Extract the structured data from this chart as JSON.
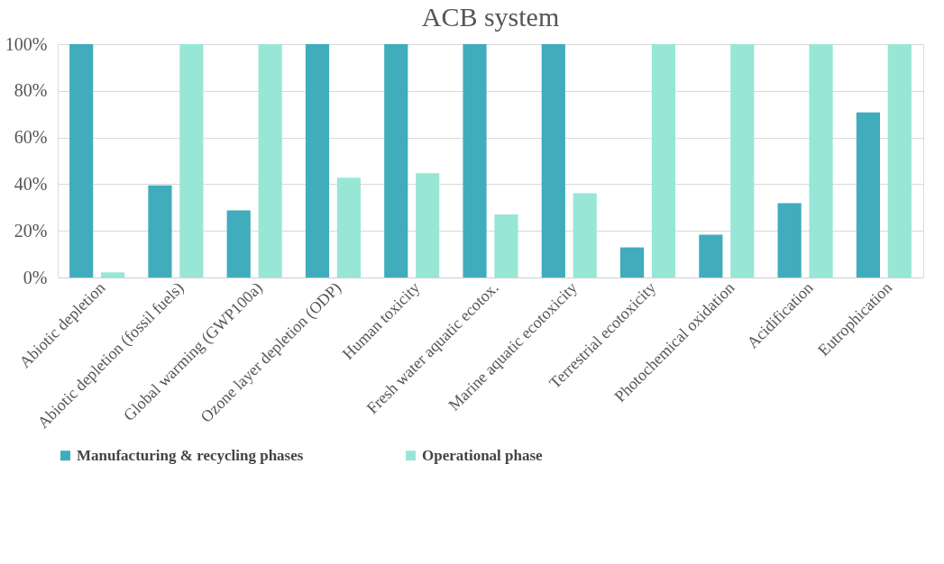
{
  "chart_data": {
    "type": "bar",
    "title": "ACB system",
    "categories": [
      "Abiotic depletion",
      "Abiotic depletion (fossil fuels)",
      "Global warming (GWP100a)",
      "Ozone layer depletion (ODP)",
      "Human toxicity",
      "Fresh water aquatic ecotox.",
      "Marine aquatic ecotoxicity",
      "Terrestrial ecotoxicity",
      "Photochemical oxidation",
      "Acidification",
      "Eutrophication"
    ],
    "series": [
      {
        "name": "Manufacturing & recycling phases",
        "color": "#40acbc",
        "values": [
          100,
          39.5,
          28.8,
          100,
          100,
          100,
          100,
          12.9,
          18.3,
          31.9,
          70.8
        ]
      },
      {
        "name": "Operational phase",
        "color": "#98e6d6",
        "values": [
          2.2,
          100,
          100,
          42.8,
          44.7,
          27.0,
          36.1,
          100,
          100,
          100,
          100
        ]
      }
    ],
    "ylim": [
      0,
      100
    ],
    "yticks": [
      {
        "value": 0,
        "label": "0%"
      },
      {
        "value": 20,
        "label": "20%"
      },
      {
        "value": 40,
        "label": "40%"
      },
      {
        "value": 60,
        "label": "60%"
      },
      {
        "value": 80,
        "label": "80%"
      },
      {
        "value": 100,
        "label": "100%"
      }
    ],
    "grid": "y",
    "legend": "bottom"
  }
}
